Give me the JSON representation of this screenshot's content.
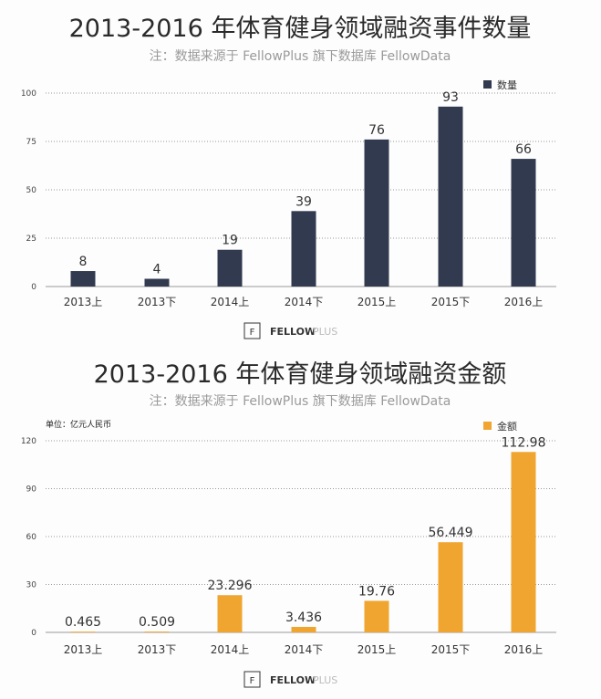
{
  "chart_data": [
    {
      "type": "bar",
      "title": "2013-2016 年体育健身领域融资事件数量",
      "subtitle": "注：数据来源于 FellowPlus 旗下数据库 FellowData",
      "categories": [
        "2013上",
        "2013下",
        "2014上",
        "2014下",
        "2015上",
        "2015下",
        "2016上"
      ],
      "series": [
        {
          "name": "数量",
          "values": [
            8,
            4,
            19,
            39,
            76,
            93,
            66
          ]
        }
      ],
      "data_labels": [
        "8",
        "4",
        "19",
        "39",
        "76",
        "93",
        "66"
      ],
      "yticks": [
        0,
        25,
        50,
        75,
        100
      ],
      "ylim": [
        0,
        100
      ],
      "grid": true,
      "legend": "top-right",
      "color": "#323a4f",
      "logo": {
        "brand": "FELLOW",
        "suffix": "PLUS"
      }
    },
    {
      "type": "bar",
      "title": "2013-2016 年体育健身领域融资金额",
      "subtitle": "注：数据来源于 FellowPlus 旗下数据库 FellowData",
      "unit": "单位：亿元人民币",
      "categories": [
        "2013上",
        "2013下",
        "2014上",
        "2014下",
        "2015上",
        "2015下",
        "2016上"
      ],
      "series": [
        {
          "name": "金额",
          "values": [
            0.465,
            0.509,
            23.296,
            3.436,
            19.76,
            56.449,
            112.98
          ]
        }
      ],
      "data_labels": [
        "0.465",
        "0.509",
        "23.296",
        "3.436",
        "19.76",
        "56.449",
        "112.98"
      ],
      "yticks": [
        0,
        30,
        60,
        90,
        120
      ],
      "ylim": [
        0,
        120
      ],
      "grid": true,
      "legend": "top-right",
      "color": "#f0a530",
      "logo": {
        "brand": "FELLOW",
        "suffix": "PLUS"
      }
    }
  ]
}
